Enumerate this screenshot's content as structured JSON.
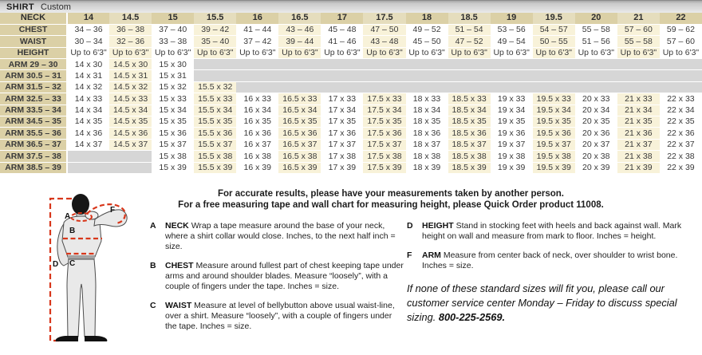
{
  "title_bar": {
    "title": "SHIRT",
    "subtitle": "Custom"
  },
  "colors": {
    "header_tan": "#dbd0a6",
    "header_tan_light": "#e5ddbd",
    "cell_cream": "#f8f2d9",
    "cell_empty_gray": "#d6d6d6",
    "measure_line_red": "#d8371b"
  },
  "size_table": {
    "neck_header_label": "NECK",
    "neck_sizes": [
      "14",
      "14.5",
      "15",
      "15.5",
      "16",
      "16.5",
      "17",
      "17.5",
      "18",
      "18.5",
      "19",
      "19.5",
      "20",
      "21",
      "22"
    ],
    "rows": [
      {
        "label": "CHEST",
        "cells": [
          "34 – 36",
          "36 – 38",
          "37 – 40",
          "39 – 42",
          "41 – 44",
          "43 – 46",
          "45 – 48",
          "47 – 50",
          "49 – 52",
          "51 – 54",
          "53 – 56",
          "54 – 57",
          "55 – 58",
          "57 – 60",
          "59 – 62"
        ]
      },
      {
        "label": "WAIST",
        "cells": [
          "30 – 34",
          "32 – 36",
          "33 – 38",
          "35 – 40",
          "37 – 42",
          "39 – 44",
          "41 – 46",
          "43 – 48",
          "45 – 50",
          "47 – 52",
          "49 – 54",
          "50 – 55",
          "51 – 56",
          "55 – 58",
          "57 – 60"
        ]
      },
      {
        "label": "HEIGHT",
        "cells": [
          "Up to 6'3\"",
          "Up to 6'3\"",
          "Up to 6'3\"",
          "Up to 6'3\"",
          "Up to 6'3\"",
          "Up to 6'3\"",
          "Up to 6'3\"",
          "Up to 6'3\"",
          "Up to 6'3\"",
          "Up to 6'3\"",
          "Up to 6'3\"",
          "Up to 6'3\"",
          "Up to 6'3\"",
          "Up to 6'3\"",
          "Up to 6'3\""
        ]
      },
      {
        "label": "ARM 29 – 30",
        "cells": [
          "14 x 30",
          "14.5 x 30",
          "15 x 30",
          "",
          "",
          "",
          "",
          "",
          "",
          "",
          "",
          "",
          "",
          "",
          ""
        ]
      },
      {
        "label": "ARM 30.5 – 31",
        "cells": [
          "14 x 31",
          "14.5 x 31",
          "15 x 31",
          "",
          "",
          "",
          "",
          "",
          "",
          "",
          "",
          "",
          "",
          "",
          ""
        ]
      },
      {
        "label": "ARM 31.5 – 32",
        "cells": [
          "14 x 32",
          "14.5 x 32",
          "15 x 32",
          "15.5 x 32",
          "",
          "",
          "",
          "",
          "",
          "",
          "",
          "",
          "",
          "",
          ""
        ]
      },
      {
        "label": "ARM 32.5 – 33",
        "cells": [
          "14 x 33",
          "14.5 x 33",
          "15 x 33",
          "15.5 x 33",
          "16 x 33",
          "16.5 x 33",
          "17 x 33",
          "17.5 x 33",
          "18 x 33",
          "18.5 x 33",
          "19 x 33",
          "19.5 x 33",
          "20 x 33",
          "21 x 33",
          "22 x 33"
        ]
      },
      {
        "label": "ARM 33.5 – 34",
        "cells": [
          "14 x 34",
          "14.5 x 34",
          "15 x 34",
          "15.5 x 34",
          "16 x 34",
          "16.5 x 34",
          "17 x 34",
          "17.5 x 34",
          "18 x 34",
          "18.5 x 34",
          "19 x 34",
          "19.5 x 34",
          "20 x 34",
          "21 x 34",
          "22 x 34"
        ]
      },
      {
        "label": "ARM 34.5 – 35",
        "cells": [
          "14 x 35",
          "14.5 x 35",
          "15 x 35",
          "15.5 x 35",
          "16 x 35",
          "16.5 x 35",
          "17 x 35",
          "17.5 x 35",
          "18 x 35",
          "18.5 x 35",
          "19 x 35",
          "19.5 x 35",
          "20 x 35",
          "21 x 35",
          "22 x 35"
        ]
      },
      {
        "label": "ARM 35.5 – 36",
        "cells": [
          "14 x 36",
          "14.5 x 36",
          "15 x 36",
          "15.5 x 36",
          "16 x 36",
          "16.5 x 36",
          "17 x 36",
          "17.5 x 36",
          "18 x 36",
          "18.5 x 36",
          "19 x 36",
          "19.5 x 36",
          "20 x 36",
          "21 x 36",
          "22 x 36"
        ]
      },
      {
        "label": "ARM 36.5 – 37",
        "cells": [
          "14 x 37",
          "14.5 x 37",
          "15 x 37",
          "15.5 x 37",
          "16 x 37",
          "16.5 x 37",
          "17 x 37",
          "17.5 x 37",
          "18 x 37",
          "18.5 x 37",
          "19 x 37",
          "19.5 x 37",
          "20 x 37",
          "21 x 37",
          "22 x 37"
        ]
      },
      {
        "label": "ARM 37.5 – 38",
        "cells": [
          "",
          "",
          "15 x 38",
          "15.5 x 38",
          "16 x 38",
          "16.5 x 38",
          "17 x 38",
          "17.5 x 38",
          "18 x 38",
          "18.5 x 38",
          "19 x 38",
          "19.5 x 38",
          "20 x 38",
          "21 x 38",
          "22 x 38"
        ]
      },
      {
        "label": "ARM 38.5 – 39",
        "cells": [
          "",
          "",
          "15 x 39",
          "15.5 x 39",
          "16 x 39",
          "16.5 x 39",
          "17 x 39",
          "17.5 x 39",
          "18 x 39",
          "18.5 x 39",
          "19 x 39",
          "19.5 x 39",
          "20 x 39",
          "21 x 39",
          "22 x 39"
        ]
      }
    ]
  },
  "figure": {
    "labels": {
      "a": "A",
      "b": "B",
      "c": "C",
      "d": "D",
      "f": "F"
    }
  },
  "instructions": {
    "intro_line1": "For accurate results, please have your measurements taken by another person.",
    "intro_line2": "For a free measuring tape and wall chart for measuring height, please Quick Order product 11008.",
    "definitions": [
      {
        "letter": "A",
        "term": "NECK",
        "text": "Wrap a tape measure around the base of your neck, where a shirt collar would close. Inches, to the next half inch = size."
      },
      {
        "letter": "B",
        "term": "CHEST",
        "text": "Measure around fullest part of chest keeping tape under arms and around shoulder blades. Measure “loosely”, with a couple of fingers under the tape. Inches = size."
      },
      {
        "letter": "C",
        "term": "WAIST",
        "text": "Measure at level of bellybutton above usual waist-line, over a shirt. Measure “loosely”, with a couple of fingers under the tape. Inches = size."
      },
      {
        "letter": "D",
        "term": "HEIGHT",
        "text": "Stand in stocking feet with heels and back against wall. Mark height on wall and measure from mark to floor. Inches = height."
      },
      {
        "letter": "F",
        "term": "ARM",
        "text": "Measure from center back of neck, over shoulder to wrist bone. Inches = size."
      }
    ],
    "note_text": "If none of these standard sizes will fit you, please call our customer service center Monday – Friday to discuss special sizing. ",
    "note_phone": "800-225-2569."
  }
}
